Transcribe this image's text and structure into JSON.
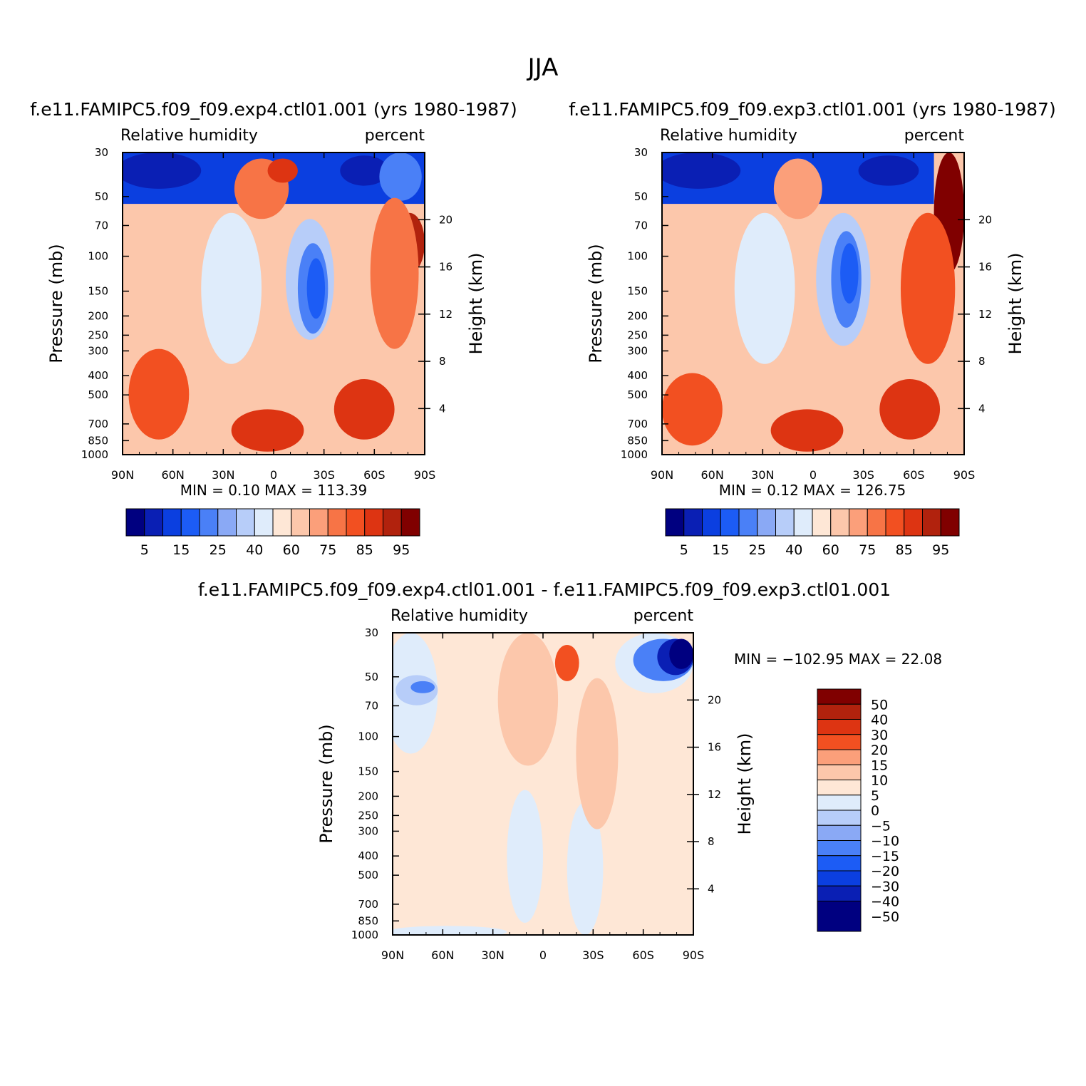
{
  "figure": {
    "title": "JJA"
  },
  "chart_data": [
    {
      "type": "heatmap",
      "title": "f.e11.FAMIPC5.f09_f09.exp4.ctl01.001 (yrs 1980-1987)",
      "left_label": "Relative humidity",
      "right_label": "percent",
      "xlabel": "",
      "ylabel": "Pressure (mb)",
      "y2label": "Height (km)",
      "x_ticks": [
        "90N",
        "60N",
        "30N",
        "0",
        "30S",
        "60S",
        "90S"
      ],
      "y_ticks": [
        30,
        50,
        70,
        100,
        150,
        200,
        250,
        300,
        400,
        500,
        700,
        850,
        1000
      ],
      "y2_ticks": [
        20,
        16,
        12,
        8,
        4
      ],
      "min_label": "MIN =",
      "min_value": "0.10",
      "max_label": "MAX =",
      "max_value": "113.39",
      "colorbar_labels": [
        "5",
        "15",
        "25",
        "40",
        "60",
        "75",
        "85",
        "95"
      ],
      "colors": [
        "#000080",
        "#0a1fb4",
        "#0b3fe0",
        "#1c5cf5",
        "#4a80f7",
        "#8aa9f5",
        "#b7cdf9",
        "#dfecfb",
        "#fee7d6",
        "#fcc7ab",
        "#fb9f7a",
        "#f77446",
        "#f25021",
        "#dd3412",
        "#b1220d",
        "#800000"
      ],
      "features": [
        {
          "kind": "band",
          "value": 2,
          "x": 0.0,
          "y": 0.0,
          "w": 1.0,
          "h": 0.17
        },
        {
          "kind": "blob",
          "value": 1,
          "x": 0.12,
          "y": 0.06,
          "rx": 0.14,
          "ry": 0.06
        },
        {
          "kind": "blob",
          "value": 1,
          "x": 0.8,
          "y": 0.06,
          "rx": 0.08,
          "ry": 0.05
        },
        {
          "kind": "blob",
          "value": 4,
          "x": 0.92,
          "y": 0.08,
          "rx": 0.07,
          "ry": 0.08
        },
        {
          "kind": "blob",
          "value": 11,
          "x": 0.46,
          "y": 0.12,
          "rx": 0.09,
          "ry": 0.1
        },
        {
          "kind": "blob",
          "value": 13,
          "x": 0.53,
          "y": 0.06,
          "rx": 0.05,
          "ry": 0.04
        },
        {
          "kind": "blob",
          "value": 7,
          "x": 0.36,
          "y": 0.45,
          "rx": 0.1,
          "ry": 0.25
        },
        {
          "kind": "blob",
          "value": 6,
          "x": 0.62,
          "y": 0.42,
          "rx": 0.08,
          "ry": 0.2
        },
        {
          "kind": "blob",
          "value": 4,
          "x": 0.63,
          "y": 0.45,
          "rx": 0.05,
          "ry": 0.15
        },
        {
          "kind": "blob",
          "value": 3,
          "x": 0.64,
          "y": 0.45,
          "rx": 0.03,
          "ry": 0.1
        },
        {
          "kind": "blob",
          "value": 12,
          "x": 0.12,
          "y": 0.8,
          "rx": 0.1,
          "ry": 0.15
        },
        {
          "kind": "blob",
          "value": 13,
          "x": 0.48,
          "y": 0.92,
          "rx": 0.12,
          "ry": 0.07
        },
        {
          "kind": "blob",
          "value": 13,
          "x": 0.8,
          "y": 0.85,
          "rx": 0.1,
          "ry": 0.1
        },
        {
          "kind": "blob",
          "value": 14,
          "x": 0.95,
          "y": 0.3,
          "rx": 0.05,
          "ry": 0.1
        },
        {
          "kind": "blob",
          "value": 11,
          "x": 0.9,
          "y": 0.4,
          "rx": 0.08,
          "ry": 0.25
        }
      ]
    },
    {
      "type": "heatmap",
      "title": "f.e11.FAMIPC5.f09_f09.exp3.ctl01.001 (yrs 1980-1987)",
      "left_label": "Relative humidity",
      "right_label": "percent",
      "xlabel": "",
      "ylabel": "Pressure (mb)",
      "y2label": "Height (km)",
      "x_ticks": [
        "90N",
        "60N",
        "30N",
        "0",
        "30S",
        "60S",
        "90S"
      ],
      "y_ticks": [
        30,
        50,
        70,
        100,
        150,
        200,
        250,
        300,
        400,
        500,
        700,
        850,
        1000
      ],
      "y2_ticks": [
        20,
        16,
        12,
        8,
        4
      ],
      "min_label": "MIN =",
      "min_value": "0.12",
      "max_label": "MAX =",
      "max_value": "126.75",
      "colorbar_labels": [
        "5",
        "15",
        "25",
        "40",
        "60",
        "75",
        "85",
        "95"
      ],
      "colors": [
        "#000080",
        "#0a1fb4",
        "#0b3fe0",
        "#1c5cf5",
        "#4a80f7",
        "#8aa9f5",
        "#b7cdf9",
        "#dfecfb",
        "#fee7d6",
        "#fcc7ab",
        "#fb9f7a",
        "#f77446",
        "#f25021",
        "#dd3412",
        "#b1220d",
        "#800000"
      ],
      "features": [
        {
          "kind": "band",
          "value": 2,
          "x": 0.0,
          "y": 0.0,
          "w": 0.9,
          "h": 0.17
        },
        {
          "kind": "blob",
          "value": 1,
          "x": 0.12,
          "y": 0.06,
          "rx": 0.14,
          "ry": 0.06
        },
        {
          "kind": "blob",
          "value": 1,
          "x": 0.75,
          "y": 0.06,
          "rx": 0.1,
          "ry": 0.05
        },
        {
          "kind": "blob",
          "value": 10,
          "x": 0.45,
          "y": 0.12,
          "rx": 0.08,
          "ry": 0.1
        },
        {
          "kind": "blob",
          "value": 7,
          "x": 0.34,
          "y": 0.45,
          "rx": 0.1,
          "ry": 0.25
        },
        {
          "kind": "blob",
          "value": 6,
          "x": 0.6,
          "y": 0.42,
          "rx": 0.09,
          "ry": 0.22
        },
        {
          "kind": "blob",
          "value": 4,
          "x": 0.61,
          "y": 0.42,
          "rx": 0.05,
          "ry": 0.16
        },
        {
          "kind": "blob",
          "value": 3,
          "x": 0.62,
          "y": 0.4,
          "rx": 0.03,
          "ry": 0.1
        },
        {
          "kind": "blob",
          "value": 12,
          "x": 0.1,
          "y": 0.85,
          "rx": 0.1,
          "ry": 0.12
        },
        {
          "kind": "blob",
          "value": 13,
          "x": 0.48,
          "y": 0.92,
          "rx": 0.12,
          "ry": 0.07
        },
        {
          "kind": "blob",
          "value": 13,
          "x": 0.82,
          "y": 0.85,
          "rx": 0.1,
          "ry": 0.1
        },
        {
          "kind": "blob",
          "value": 15,
          "x": 0.95,
          "y": 0.2,
          "rx": 0.05,
          "ry": 0.2
        },
        {
          "kind": "blob",
          "value": 12,
          "x": 0.88,
          "y": 0.45,
          "rx": 0.09,
          "ry": 0.25
        }
      ]
    },
    {
      "type": "heatmap",
      "title": "f.e11.FAMIPC5.f09_f09.exp4.ctl01.001 - f.e11.FAMIPC5.f09_f09.exp3.ctl01.001",
      "left_label": "Relative humidity",
      "right_label": "percent",
      "xlabel": "",
      "ylabel": "Pressure (mb)",
      "y2label": "Height (km)",
      "x_ticks": [
        "90N",
        "60N",
        "30N",
        "0",
        "30S",
        "60S",
        "90S"
      ],
      "y_ticks": [
        30,
        50,
        70,
        100,
        150,
        200,
        250,
        300,
        400,
        500,
        700,
        850,
        1000
      ],
      "y2_ticks": [
        20,
        16,
        12,
        8,
        4
      ],
      "min_label": "MIN =",
      "min_value": "−102.95",
      "max_label": "MAX =",
      "max_value": "22.08",
      "colorbar_labels": [
        "50",
        "40",
        "30",
        "20",
        "15",
        "10",
        "5",
        "0",
        "−5",
        "−10",
        "−15",
        "−20",
        "−30",
        "−40",
        "−50"
      ],
      "colors": [
        "#800000",
        "#b1220d",
        "#dd3412",
        "#f25021",
        "#fb9f7a",
        "#fcc7ab",
        "#fee7d6",
        "#dfecfb",
        "#b7cdf9",
        "#8aa9f5",
        "#4a80f7",
        "#1c5cf5",
        "#0b3fe0",
        "#0a1fb4",
        "#000080"
      ],
      "features": [
        {
          "kind": "band",
          "value": 6,
          "x": 0.0,
          "y": 0.0,
          "w": 1.0,
          "h": 1.0
        },
        {
          "kind": "blob",
          "value": 7,
          "x": 0.06,
          "y": 0.2,
          "rx": 0.09,
          "ry": 0.2
        },
        {
          "kind": "blob",
          "value": 8,
          "x": 0.08,
          "y": 0.19,
          "rx": 0.07,
          "ry": 0.05
        },
        {
          "kind": "blob",
          "value": 10,
          "x": 0.1,
          "y": 0.18,
          "rx": 0.04,
          "ry": 0.02
        },
        {
          "kind": "blob",
          "value": 7,
          "x": 0.44,
          "y": 0.74,
          "rx": 0.06,
          "ry": 0.22
        },
        {
          "kind": "blob",
          "value": 7,
          "x": 0.64,
          "y": 0.78,
          "rx": 0.06,
          "ry": 0.22
        },
        {
          "kind": "blob",
          "value": 7,
          "x": 0.18,
          "y": 0.99,
          "rx": 0.2,
          "ry": 0.02
        },
        {
          "kind": "blob",
          "value": 5,
          "x": 0.45,
          "y": 0.22,
          "rx": 0.1,
          "ry": 0.22
        },
        {
          "kind": "blob",
          "value": 5,
          "x": 0.68,
          "y": 0.4,
          "rx": 0.07,
          "ry": 0.25
        },
        {
          "kind": "blob",
          "value": 3,
          "x": 0.58,
          "y": 0.1,
          "rx": 0.04,
          "ry": 0.06
        },
        {
          "kind": "blob",
          "value": 7,
          "x": 0.87,
          "y": 0.1,
          "rx": 0.13,
          "ry": 0.1
        },
        {
          "kind": "blob",
          "value": 10,
          "x": 0.9,
          "y": 0.09,
          "rx": 0.1,
          "ry": 0.07
        },
        {
          "kind": "blob",
          "value": 13,
          "x": 0.94,
          "y": 0.08,
          "rx": 0.06,
          "ry": 0.06
        },
        {
          "kind": "blob",
          "value": 14,
          "x": 0.96,
          "y": 0.07,
          "rx": 0.04,
          "ry": 0.05
        }
      ]
    }
  ]
}
